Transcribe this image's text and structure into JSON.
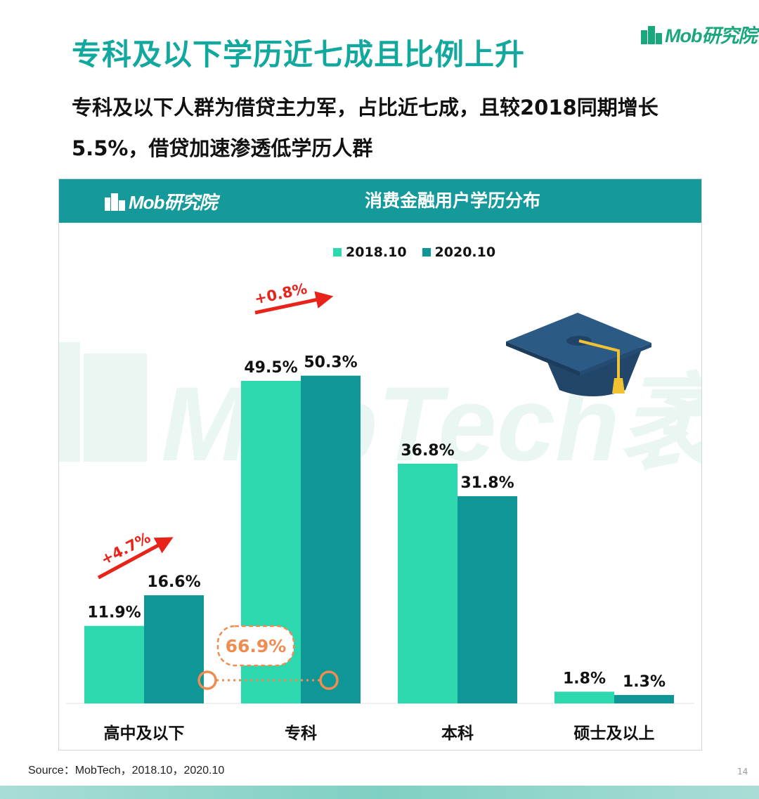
{
  "brand_top": {
    "name": "Mob研究院",
    "logo_color": "#1aa77e"
  },
  "page": {
    "title": "专科及以下学历近七成且比例上升",
    "subtitle": "专科及以下人群为借贷主力军，占比近七成，且较2018同期增长5.5%，借贷加速渗透低学历人群"
  },
  "panel": {
    "brand": "Mob研究院",
    "header_color": "#16999b"
  },
  "watermark": {
    "text": "MobTech袤博"
  },
  "chart_data": {
    "type": "bar",
    "title": "消费金融用户学历分布",
    "categories": [
      "高中及以下",
      "专科",
      "本科",
      "硕士及以上"
    ],
    "series": [
      {
        "name": "2018.10",
        "values": [
          11.9,
          49.5,
          36.8,
          1.8
        ],
        "labels": [
          "11.9%",
          "49.5%",
          "36.8%",
          "1.8%"
        ],
        "color": "#2ed8ae"
      },
      {
        "name": "2020.10",
        "values": [
          16.6,
          50.3,
          31.8,
          1.3
        ],
        "labels": [
          "16.6%",
          "50.3%",
          "31.8%",
          "1.3%"
        ],
        "color": "#0f9797"
      }
    ],
    "ylim": [
      0,
      55
    ],
    "grid": false,
    "legend_position": "top-center",
    "annotations": [
      {
        "text": "+4.7%",
        "category": "高中及以下",
        "color": "#e8231a"
      },
      {
        "text": "+0.8%",
        "category": "专科",
        "color": "#e8231a"
      },
      {
        "text": "66.9%",
        "from_category": "高中及以下",
        "to_category": "专科",
        "color": "#ef8c52"
      }
    ]
  },
  "footer": {
    "source": "Source：MobTech，2018.10，2020.10",
    "page_number": "14"
  }
}
